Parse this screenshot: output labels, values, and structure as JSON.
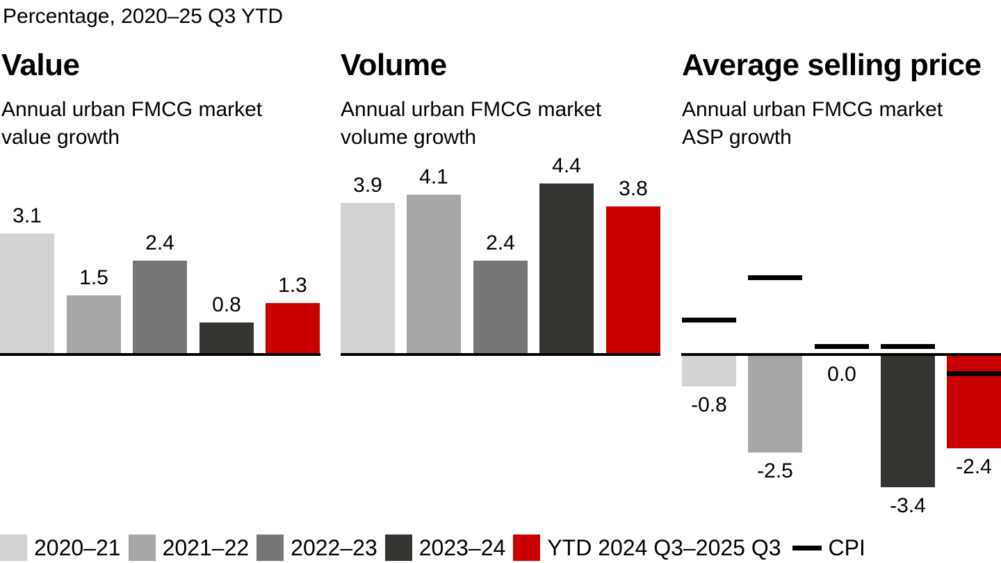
{
  "header": {
    "title": "Percentage, 2020–25 Q3 YTD"
  },
  "panels": [
    {
      "title": "Value",
      "subtitle_line1": "Annual urban FMCG market",
      "subtitle_line2": "value growth"
    },
    {
      "title": "Volume",
      "subtitle_line1": "Annual urban FMCG market",
      "subtitle_line2": "volume growth"
    },
    {
      "title": "Average selling price",
      "subtitle_line1": "Annual urban FMCG market",
      "subtitle_line2": "ASP growth"
    }
  ],
  "chart_data": [
    {
      "type": "bar",
      "title": "Value",
      "subtitle": "Annual urban FMCG market value growth",
      "unit": "percent",
      "categories": [
        "2020–21",
        "2021–22",
        "2022–23",
        "2023–24",
        "YTD 2024 Q3–2025 Q3"
      ],
      "values": [
        3.1,
        1.5,
        2.4,
        0.8,
        1.3
      ],
      "grid": false,
      "value_labels": true
    },
    {
      "type": "bar",
      "title": "Volume",
      "subtitle": "Annual urban FMCG market volume growth",
      "unit": "percent",
      "categories": [
        "2020–21",
        "2021–22",
        "2022–23",
        "2023–24",
        "YTD 2024 Q3–2025 Q3"
      ],
      "values": [
        3.9,
        4.1,
        2.4,
        4.4,
        3.8
      ],
      "grid": false,
      "value_labels": true
    },
    {
      "type": "bar",
      "title": "Average selling price",
      "subtitle": "Annual urban FMCG market ASP growth",
      "unit": "percent",
      "categories": [
        "2020–21",
        "2021–22",
        "2022–23",
        "2023–24",
        "YTD 2024 Q3–2025 Q3"
      ],
      "values": [
        -0.8,
        -2.5,
        0.0,
        -3.4,
        -2.4
      ],
      "cpi": [
        0.9,
        2.0,
        0.2,
        0.2,
        -0.5
      ],
      "grid": false,
      "value_labels": true
    }
  ],
  "legend": {
    "items": [
      {
        "label": "2020–21",
        "color": "#d2d2d0"
      },
      {
        "label": "2021–22",
        "color": "#a7a6a4"
      },
      {
        "label": "2022–23",
        "color": "#777675"
      },
      {
        "label": "2023–24",
        "color": "#343431"
      },
      {
        "label": "YTD 2024 Q3–2025 Q3",
        "color": "#cb0101"
      }
    ],
    "cpi_label": "CPI",
    "cpi_color": "#000000"
  },
  "colors": {
    "background": "#ffffff",
    "axis": "#000000",
    "text": "#000000",
    "series": [
      "#d2d2d0",
      "#a7a6a4",
      "#777675",
      "#343431",
      "#cb0101"
    ]
  }
}
